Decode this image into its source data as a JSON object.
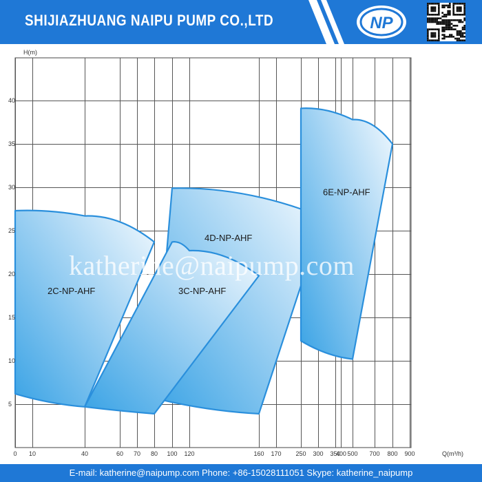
{
  "header": {
    "company": "SHIJIAZHUANG NAIPU PUMP CO.,LTD",
    "logo_text": "NP",
    "qr_icon": "qr-code-icon"
  },
  "footer": {
    "contact": "E-mail: katherine@naipump.com Phone: +86-15028111051 Skype: katherine_naipump"
  },
  "watermark": "katherine@naipump.com",
  "colors": {
    "header": "#1f78d6",
    "region_stroke": "#2a8fdc",
    "region_fill_dark": "#5bb3ea",
    "region_fill_light": "#eef7fd",
    "grid": "#444444"
  },
  "chart_data": {
    "type": "area",
    "xlabel": "Q(m³/h)",
    "ylabel": "H(m)",
    "x_scale": "custom log-like",
    "xlim": [
      0,
      900
    ],
    "ylim": [
      0,
      40
    ],
    "x_ticks": [
      0,
      10,
      40,
      60,
      70,
      80,
      100,
      120,
      160,
      170,
      250,
      300,
      350,
      400,
      500,
      700,
      800,
      900
    ],
    "x_tick_labels": [
      "0",
      "10",
      "40",
      "60",
      "70",
      "80",
      "100",
      "120",
      "160",
      "170",
      "250",
      "300",
      "350",
      "400",
      "500",
      "700",
      "800",
      "900"
    ],
    "y_ticks": [
      5,
      10,
      15,
      20,
      25,
      30,
      35,
      40
    ],
    "grid": true,
    "series": [
      {
        "name": "2C-NP-AHF",
        "top": [
          [
            0,
            27.3
          ],
          [
            40,
            26.7
          ],
          [
            60,
            25.2
          ],
          [
            80,
            23.7
          ]
        ],
        "right": [
          [
            80,
            23.7
          ],
          [
            40,
            4.7
          ]
        ],
        "bottom": [
          [
            40,
            4.7
          ],
          [
            0,
            6.2
          ]
        ]
      },
      {
        "name": "3C-NP-AHF",
        "top": [
          [
            80,
            23.7
          ],
          [
            120,
            22.7
          ],
          [
            160,
            19.8
          ]
        ],
        "right": [
          [
            160,
            19.8
          ],
          [
            160,
            3.9
          ]
        ],
        "bottom": [
          [
            160,
            3.9
          ],
          [
            100,
            5.3
          ],
          [
            80,
            5.7
          ]
        ],
        "left": [
          [
            80,
            5.7
          ],
          [
            100,
            23.7
          ]
        ]
      },
      {
        "name": "4D-NP-AHF",
        "top": [
          [
            100,
            29.9
          ],
          [
            160,
            29.5
          ],
          [
            250,
            27.5
          ],
          [
            300,
            24.7
          ]
        ],
        "right": [
          [
            300,
            24.7
          ],
          [
            160,
            3.9
          ]
        ],
        "left": [
          [
            80,
            5.7
          ],
          [
            100,
            29.9
          ]
        ]
      },
      {
        "name": "6E-NP-AHF",
        "top": [
          [
            250,
            39.1
          ],
          [
            400,
            38.5
          ],
          [
            500,
            37.8
          ],
          [
            800,
            35.0
          ]
        ],
        "right": [
          [
            800,
            35.0
          ],
          [
            500,
            10.2
          ]
        ],
        "bottom": [
          [
            500,
            10.2
          ],
          [
            400,
            11.5
          ],
          [
            250,
            12.3
          ]
        ],
        "left": [
          [
            250,
            12.3
          ],
          [
            250,
            39.1
          ]
        ]
      }
    ]
  }
}
